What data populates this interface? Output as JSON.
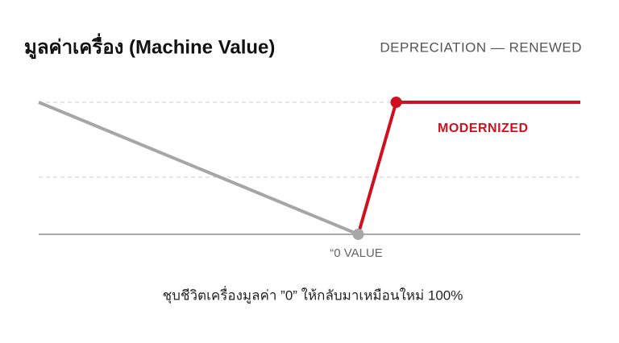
{
  "chart_data": {
    "type": "line",
    "title": "มูลค่าเครื่อง (Machine Value)",
    "subtitle": "DEPRECIATION — RENEWED",
    "annotations": [
      "MODERNIZED",
      "“0 VALUE"
    ],
    "caption": "ชุบชีวิตเครื่องมูลค่า ”0”  ให้กลับมาเหมือนใหม่ 100%",
    "xlim": [
      0,
      100
    ],
    "ylim": [
      0,
      100
    ],
    "series": [
      {
        "color": "#a6a6a6",
        "x": [
          0,
          59
        ],
        "values": [
          100,
          0
        ],
        "markers": [
          1
        ]
      },
      {
        "color": "#d0101e",
        "x": [
          59,
          66,
          100
        ],
        "values": [
          0,
          100,
          100
        ],
        "markers": [
          1
        ]
      }
    ]
  }
}
